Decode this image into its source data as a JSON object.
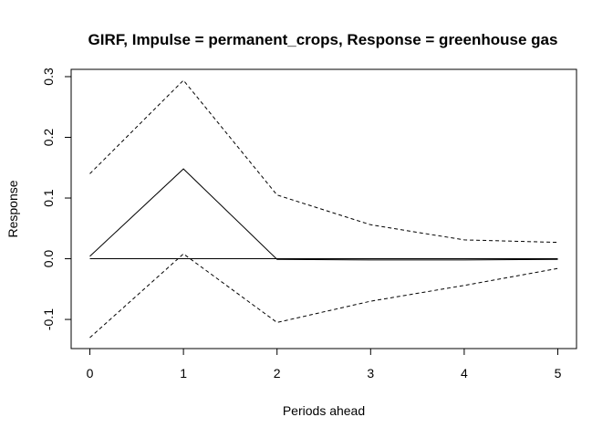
{
  "chart_data": {
    "type": "line",
    "title": "GIRF, Impulse = permanent_crops, Response = greenhouse gas",
    "xlabel": "Periods ahead",
    "ylabel": "Response",
    "x": [
      0,
      1,
      2,
      3,
      4,
      5
    ],
    "xlim": [
      -0.2,
      5.2
    ],
    "ylim": [
      -0.148,
      0.312
    ],
    "x_ticks": [
      "0",
      "1",
      "2",
      "3",
      "4",
      "5"
    ],
    "y_ticks": [
      -0.1,
      0.0,
      0.1,
      0.2,
      0.3
    ],
    "y_tick_labels": [
      "-0.1",
      "0.0",
      "0.1",
      "0.2",
      "0.3"
    ],
    "zero_line": 0,
    "series": [
      {
        "role": "response",
        "style": "solid",
        "values": [
          0.004,
          0.148,
          -0.001,
          -0.002,
          -0.002,
          -0.001
        ]
      },
      {
        "role": "upper",
        "style": "dashed",
        "values": [
          0.14,
          0.294,
          0.105,
          0.056,
          0.031,
          0.027
        ]
      },
      {
        "role": "lower",
        "style": "dashed",
        "values": [
          -0.13,
          0.008,
          -0.105,
          -0.07,
          -0.044,
          -0.016
        ]
      }
    ],
    "grid": false,
    "legend": "none",
    "color": "#000000"
  }
}
